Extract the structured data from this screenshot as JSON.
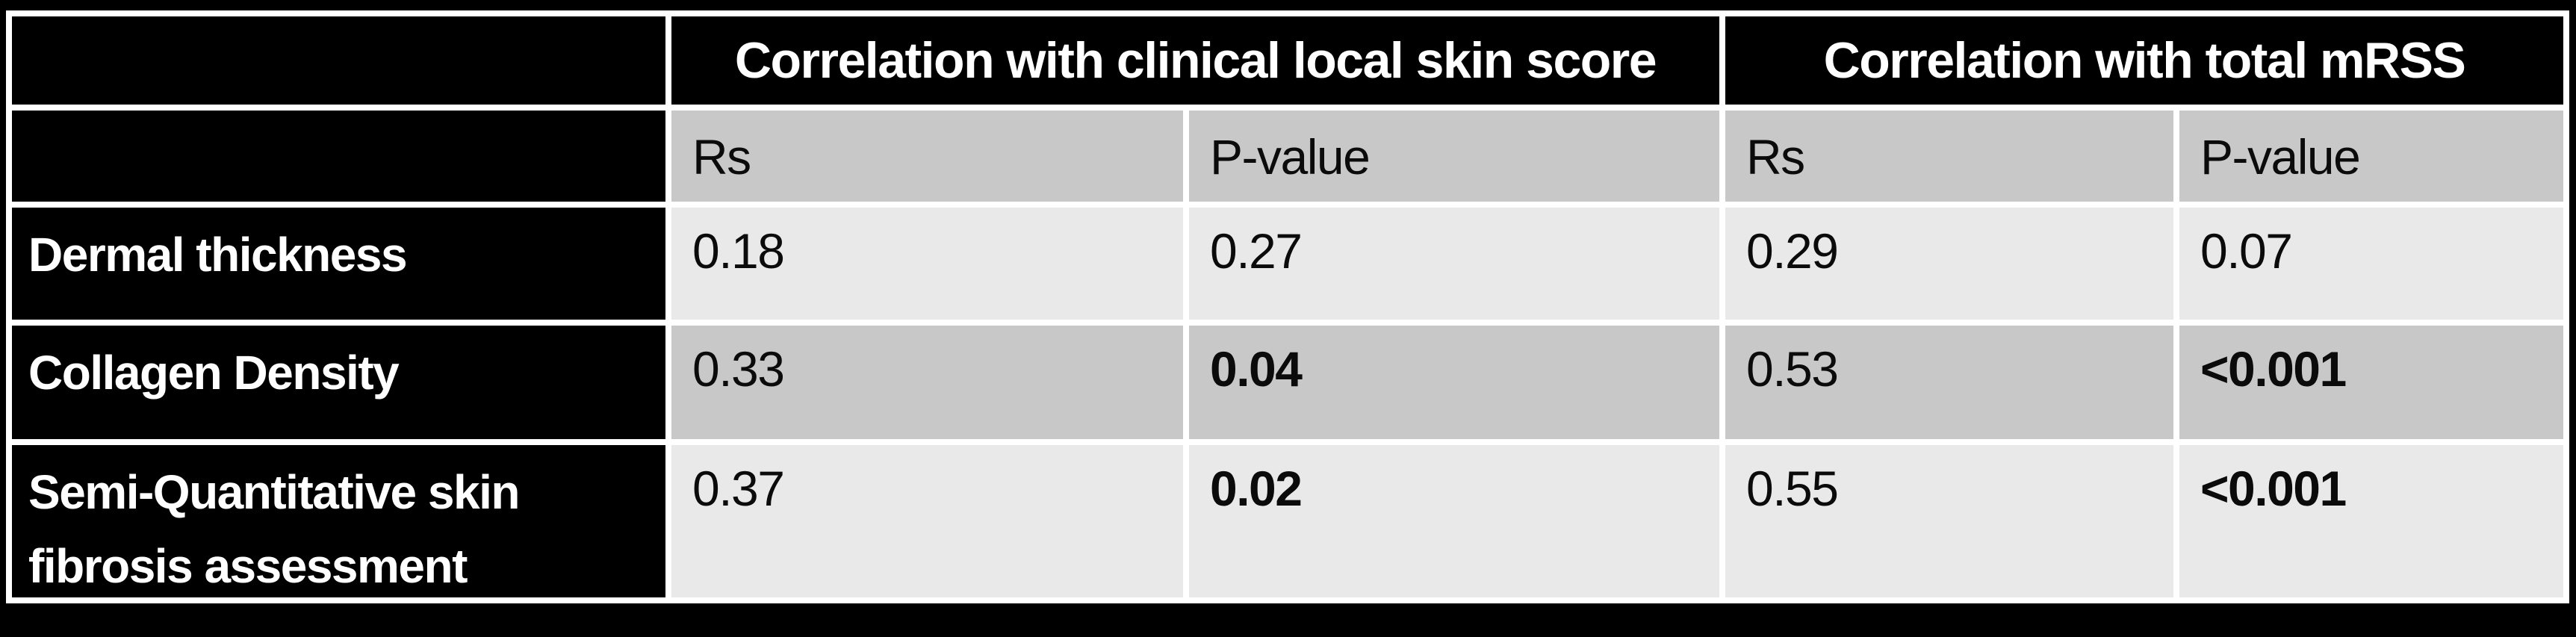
{
  "table": {
    "header_groups": [
      {
        "label": "Correlation with clinical local skin score"
      },
      {
        "label": "Correlation with total mRSS"
      }
    ],
    "subheaders": {
      "rs_local": "Rs",
      "pvalue_local": "P-value",
      "rs_mrss": "Rs",
      "pvalue_mrss": "P-value"
    },
    "rows": [
      {
        "label": "Dermal thickness",
        "cells": [
          {
            "text": "0.18",
            "bold": false
          },
          {
            "text": "0.27",
            "bold": false
          },
          {
            "text": "0.29",
            "bold": false
          },
          {
            "text": "0.07",
            "bold": false
          }
        ]
      },
      {
        "label": "Collagen Density",
        "cells": [
          {
            "text": "0.33",
            "bold": false
          },
          {
            "text": "0.04",
            "bold": true
          },
          {
            "text": "0.53",
            "bold": false
          },
          {
            "text": "<0.001",
            "bold": true
          }
        ]
      },
      {
        "label": "Semi-Quantitative skin fibrosis assessment",
        "cells": [
          {
            "text": "0.37",
            "bold": false
          },
          {
            "text": "0.02",
            "bold": true
          },
          {
            "text": "0.55",
            "bold": false
          },
          {
            "text": "<0.001",
            "bold": true
          }
        ]
      }
    ]
  },
  "colors": {
    "page_background": "#000000",
    "label_cell_background": "#000000",
    "band_gray": "#c8c8c8",
    "band_light": "#e9e9e9",
    "border_white": "#ffffff",
    "text_dark": "#0b0b0b",
    "text_white": "#ffffff"
  },
  "chart_data": {
    "type": "table",
    "title": "",
    "column_groups": [
      "",
      "Correlation with clinical local skin score",
      "Correlation with total mRSS"
    ],
    "columns": [
      "",
      "Rs",
      "P-value",
      "Rs",
      "P-value"
    ],
    "rows": [
      [
        "Dermal thickness",
        "0.18",
        "0.27",
        "0.29",
        "0.07"
      ],
      [
        "Collagen Density",
        "0.33",
        "0.04",
        "0.53",
        "<0.001"
      ],
      [
        "Semi-Quantitative skin fibrosis assessment",
        "0.37",
        "0.02",
        "0.55",
        "<0.001"
      ]
    ],
    "bold_cells_note": "P-values 0.04, 0.02 and both <0.001 are rendered bold (statistically significant)",
    "layout": "row labels on black cells with white bold text; data rows banded gray (#c8c8c8) and light gray (#e9e9e9); white grid borders on black canvas"
  }
}
